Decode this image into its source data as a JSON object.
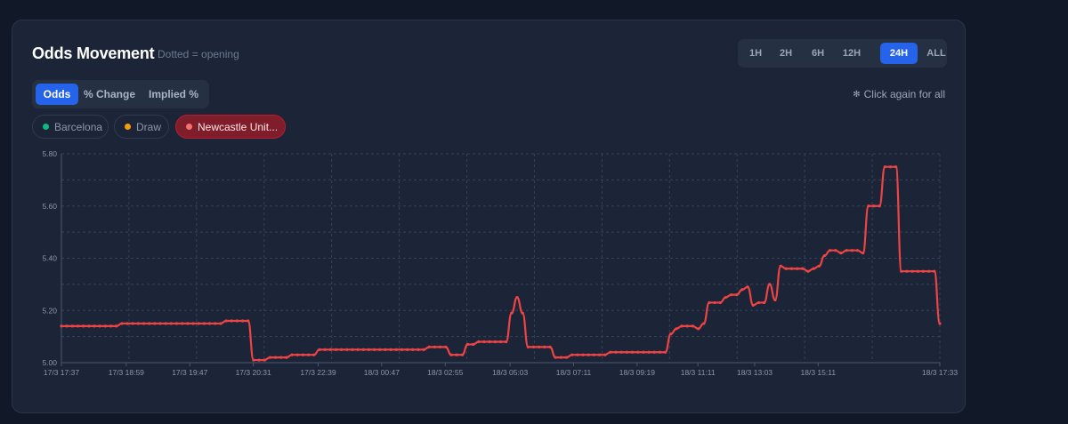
{
  "header": {
    "title": "Odds Movement",
    "subtitle": "Dotted = opening"
  },
  "ranges": {
    "items": [
      "1H",
      "2H",
      "6H",
      "12H",
      "24H",
      "ALL"
    ],
    "selected": "24H"
  },
  "modes": {
    "items": [
      "Odds",
      "% Change",
      "Implied %"
    ],
    "selected": "Odds"
  },
  "hint": {
    "text": "Click again for all",
    "icon": "pointer-click-icon"
  },
  "selections": [
    {
      "label": "Barcelona",
      "color": "#10b981",
      "active": false
    },
    {
      "label": "Draw",
      "color": "#f59e0b",
      "active": false
    },
    {
      "label": "Newcastle Unit...",
      "color": "#f87171",
      "active": true
    }
  ],
  "chart_data": {
    "type": "line",
    "series_color": "#ef4444",
    "ylim": [
      5.0,
      5.8
    ],
    "y_ticks": [
      "5.00",
      "5.20",
      "5.40",
      "5.60",
      "5.80"
    ],
    "y_tick_values": [
      5.0,
      5.2,
      5.4,
      5.6,
      5.8
    ],
    "x_tick_labels": [
      "17/3 17:37",
      "17/3 18:59",
      "17/3 19:47",
      "17/3 20:31",
      "17/3 22:39",
      "18/3 00:47",
      "18/3 02:55",
      "18/3 05:03",
      "18/3 07:11",
      "18/3 09:19",
      "18/3 11:11",
      "18/3 13:03",
      "18/3 15:11",
      "18/3 17:33"
    ],
    "x_tick_index": [
      0,
      1,
      2,
      3,
      4,
      5,
      6,
      7,
      8,
      9,
      10,
      11,
      12,
      13
    ],
    "x_tick_position": [
      0.0,
      0.0738,
      0.1462,
      0.2185,
      0.2923,
      0.3646,
      0.4369,
      0.5108,
      0.5831,
      0.6554,
      0.7246,
      0.7892,
      0.8615,
      1.0
    ],
    "grid": true,
    "series": [
      {
        "values": [
          5.14,
          5.14,
          5.14,
          5.14,
          5.14,
          5.14,
          5.14,
          5.14,
          5.14,
          5.14,
          5.14,
          5.15,
          5.15,
          5.15,
          5.15,
          5.15,
          5.15,
          5.15,
          5.15,
          5.15,
          5.15,
          5.15,
          5.15,
          5.15,
          5.15,
          5.15,
          5.15,
          5.15,
          5.15,
          5.15,
          5.16,
          5.16,
          5.16,
          5.16,
          5.16,
          5.01,
          5.01,
          5.01,
          5.02,
          5.02,
          5.02,
          5.02,
          5.03,
          5.03,
          5.03,
          5.03,
          5.03,
          5.05,
          5.05,
          5.05,
          5.05,
          5.05,
          5.05,
          5.05,
          5.05,
          5.05,
          5.05,
          5.05,
          5.05,
          5.05,
          5.05,
          5.05,
          5.05,
          5.05,
          5.05,
          5.05,
          5.05,
          5.06,
          5.06,
          5.06,
          5.06,
          5.03,
          5.03,
          5.03,
          5.07,
          5.07,
          5.08,
          5.08,
          5.08,
          5.08,
          5.08,
          5.08,
          5.19,
          5.25,
          5.19,
          5.06,
          5.06,
          5.06,
          5.06,
          5.06,
          5.02,
          5.02,
          5.02,
          5.03,
          5.03,
          5.03,
          5.03,
          5.03,
          5.03,
          5.03,
          5.04,
          5.04,
          5.04,
          5.04,
          5.04,
          5.04,
          5.04,
          5.04,
          5.04,
          5.04,
          5.04,
          5.11,
          5.13,
          5.14,
          5.14,
          5.14,
          5.13,
          5.15,
          5.23,
          5.23,
          5.23,
          5.25,
          5.26,
          5.26,
          5.28,
          5.29,
          5.22,
          5.23,
          5.23,
          5.3,
          5.24,
          5.37,
          5.36,
          5.36,
          5.36,
          5.36,
          5.35,
          5.36,
          5.37,
          5.41,
          5.43,
          5.43,
          5.42,
          5.43,
          5.43,
          5.43,
          5.42,
          5.6,
          5.6,
          5.6,
          5.75,
          5.75,
          5.75,
          5.35,
          5.35,
          5.35,
          5.35,
          5.35,
          5.35,
          5.35,
          5.15
        ]
      }
    ]
  }
}
